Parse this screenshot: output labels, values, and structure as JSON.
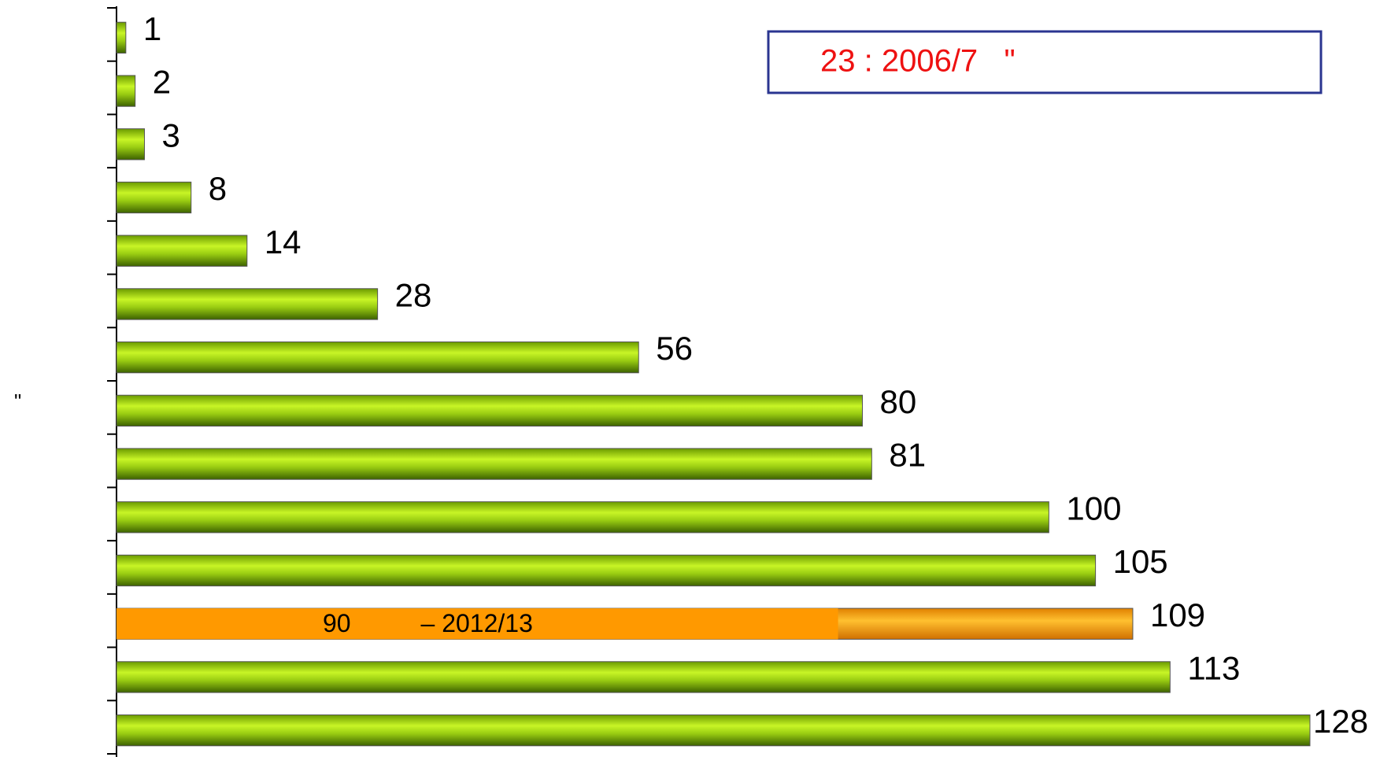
{
  "chart_data": {
    "type": "bar",
    "orientation": "horizontal",
    "categories": [
      null,
      null,
      null,
      null,
      null,
      null,
      null,
      null,
      null,
      null,
      null,
      null,
      null,
      null
    ],
    "values": [
      1,
      2,
      3,
      8,
      14,
      28,
      56,
      80,
      81,
      100,
      105,
      109,
      113,
      128
    ],
    "colors": [
      "#9acd12",
      "#9acd12",
      "#9acd12",
      "#9acd12",
      "#9acd12",
      "#9acd12",
      "#9acd12",
      "#9acd12",
      "#9acd12",
      "#9acd12",
      "#9acd12",
      "#ff9900",
      "#9acd12",
      "#9acd12"
    ],
    "y_label": "\"",
    "annotation_box": "23 : 2006/7   \"",
    "bar_annotation": "90          – 2012/13"
  }
}
